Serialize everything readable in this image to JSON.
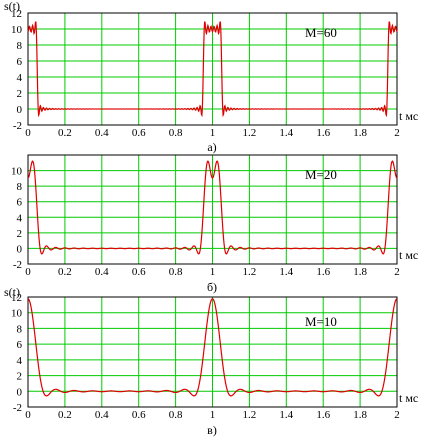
{
  "chart_data": [
    {
      "type": "line",
      "panel_label": "а)",
      "annotation": "M=60",
      "ylabel": "s(t)",
      "xlabel": "t мс",
      "xlim": [
        0,
        2
      ],
      "ylim": [
        -2,
        12
      ],
      "x_ticks": [
        "0",
        "0.2",
        "0.4",
        "0.6",
        "0.8",
        "1",
        "1.2",
        "1.4",
        "1.6",
        "1.8",
        "2"
      ],
      "y_ticks": [
        "-2",
        "0",
        "2",
        "4",
        "6",
        "8",
        "10",
        "12"
      ],
      "grid": true,
      "series_color": "#e00000",
      "grid_color": "#00cc00",
      "M": 60,
      "pulse_amplitude": 10,
      "pulse_width_ms": 0.1,
      "period_ms": 1
    },
    {
      "type": "line",
      "panel_label": "б)",
      "annotation": "M=20",
      "ylabel": "",
      "xlabel": "t мс",
      "xlim": [
        0,
        2
      ],
      "ylim": [
        -2,
        12
      ],
      "x_ticks": [
        "0",
        "0.2",
        "0.4",
        "0.6",
        "0.8",
        "1",
        "1.2",
        "1.4",
        "1.6",
        "1.8",
        "2"
      ],
      "y_ticks": [
        "-2",
        "0",
        "2",
        "4",
        "6",
        "8",
        "10",
        "12"
      ],
      "grid": true,
      "series_color": "#e00000",
      "grid_color": "#00cc00",
      "M": 20,
      "pulse_amplitude": 10,
      "pulse_width_ms": 0.1,
      "period_ms": 1
    },
    {
      "type": "line",
      "panel_label": "в)",
      "annotation": "M=10",
      "ylabel": "s(t)",
      "xlabel": "t мс",
      "xlim": [
        0,
        2
      ],
      "ylim": [
        -2,
        12
      ],
      "x_ticks": [
        "0",
        "0.2",
        "0.4",
        "0.6",
        "0.8",
        "1",
        "1.2",
        "1.4",
        "1.6",
        "1.8",
        "2"
      ],
      "y_ticks": [
        "-2",
        "0",
        "2",
        "4",
        "6",
        "8",
        "10",
        "12"
      ],
      "grid": true,
      "series_color": "#e00000",
      "grid_color": "#00cc00",
      "M": 10,
      "pulse_amplitude": 10,
      "pulse_width_ms": 0.1,
      "period_ms": 1
    }
  ]
}
